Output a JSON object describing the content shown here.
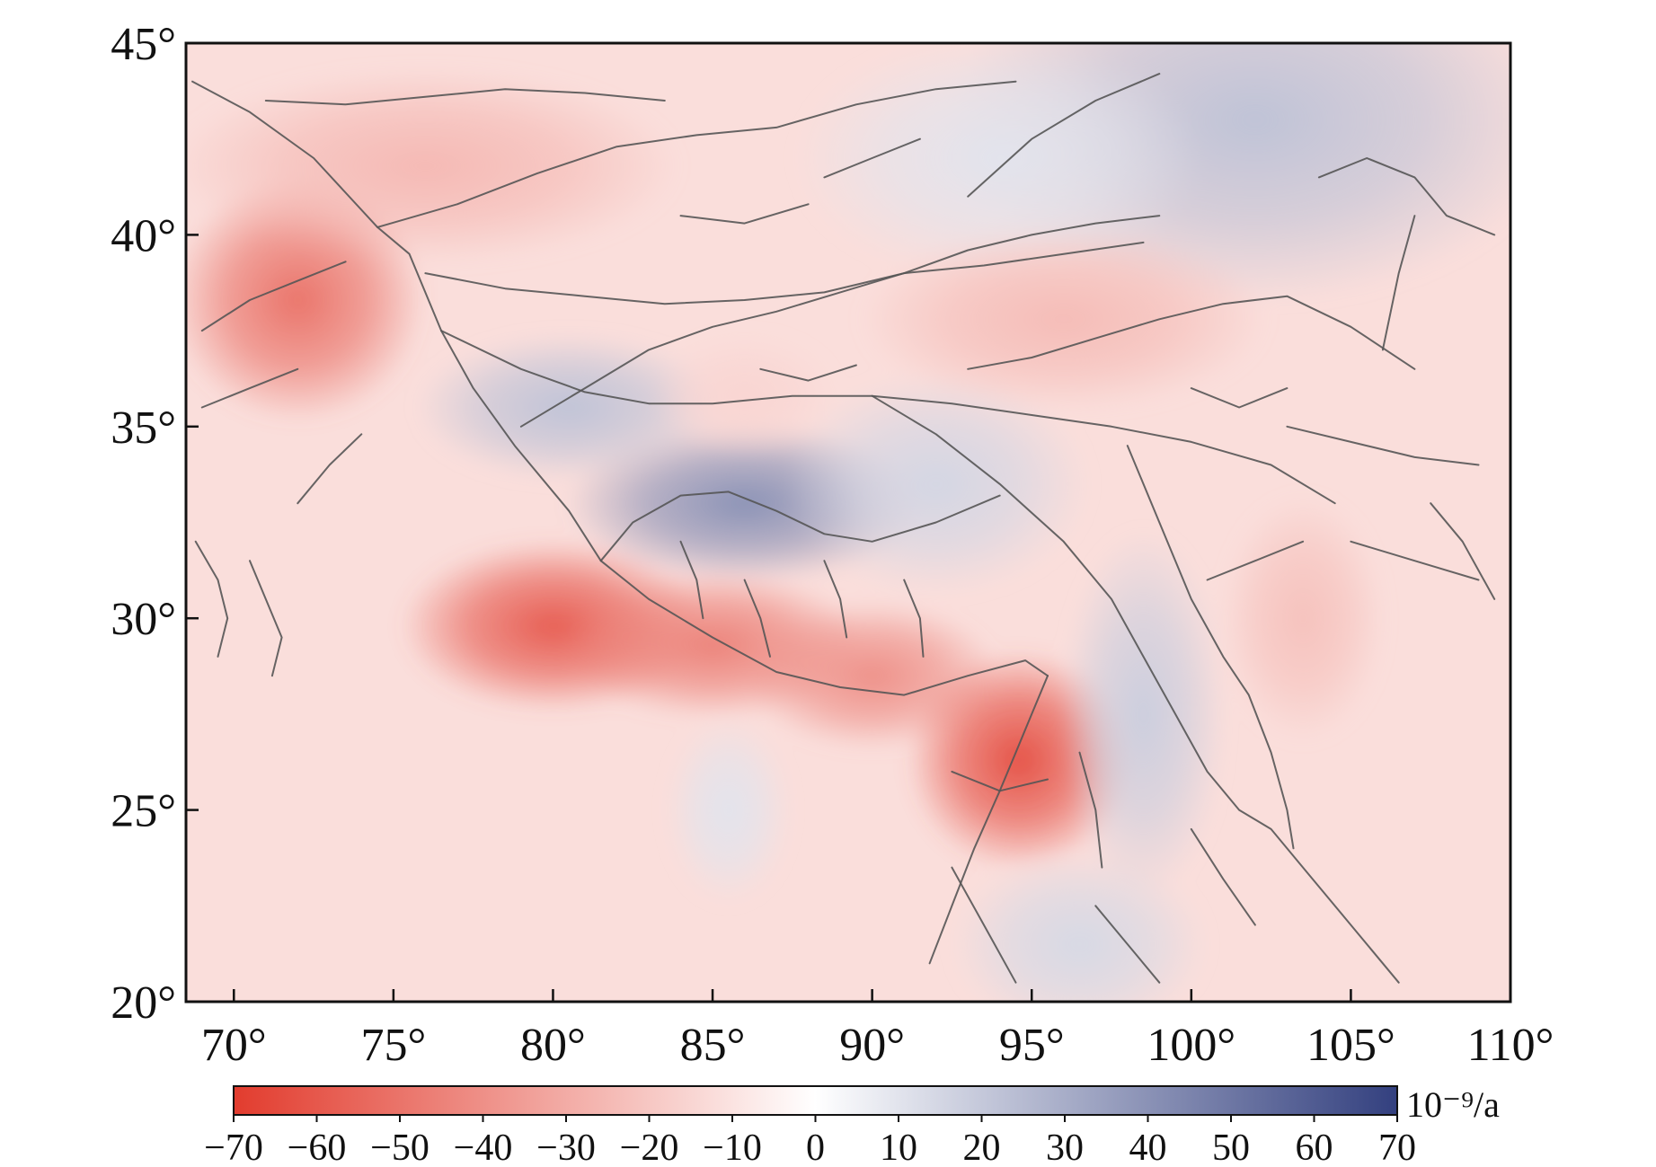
{
  "map": {
    "lon_range": [
      68.5,
      110
    ],
    "lat_range": [
      20,
      45
    ],
    "x_ticks": [
      {
        "value": 70,
        "label": "70°"
      },
      {
        "value": 75,
        "label": "75°"
      },
      {
        "value": 80,
        "label": "80°"
      },
      {
        "value": 85,
        "label": "85°"
      },
      {
        "value": 90,
        "label": "90°"
      },
      {
        "value": 95,
        "label": "95°"
      },
      {
        "value": 100,
        "label": "100°"
      },
      {
        "value": 105,
        "label": "105°"
      },
      {
        "value": 110,
        "label": "110°"
      }
    ],
    "y_ticks": [
      {
        "value": 45,
        "label": "45°"
      },
      {
        "value": 40,
        "label": "40°"
      },
      {
        "value": 35,
        "label": "35°"
      },
      {
        "value": 30,
        "label": "30°"
      },
      {
        "value": 25,
        "label": "25°"
      },
      {
        "value": 20,
        "label": "20°"
      }
    ],
    "strain_field": {
      "background_value": -12,
      "anomalies": [
        {
          "lon": 72.0,
          "lat": 38.3,
          "value": -50,
          "spread_lon": 2.5,
          "spread_lat": 2.0
        },
        {
          "lon": 76.0,
          "lat": 41.8,
          "value": -25,
          "spread_lon": 5.0,
          "spread_lat": 1.6
        },
        {
          "lon": 80.0,
          "lat": 29.8,
          "value": -58,
          "spread_lon": 3.0,
          "spread_lat": 1.4
        },
        {
          "lon": 85.0,
          "lat": 29.3,
          "value": -45,
          "spread_lon": 3.0,
          "spread_lat": 1.2
        },
        {
          "lon": 90.0,
          "lat": 28.5,
          "value": -40,
          "spread_lon": 2.5,
          "spread_lat": 1.2
        },
        {
          "lon": 94.6,
          "lat": 26.3,
          "value": -62,
          "spread_lon": 2.2,
          "spread_lat": 1.8
        },
        {
          "lon": 86.0,
          "lat": 33.0,
          "value": 40,
          "spread_lon": 3.5,
          "spread_lat": 1.3
        },
        {
          "lon": 80.5,
          "lat": 35.5,
          "value": 22,
          "spread_lon": 3.0,
          "spread_lat": 1.2
        },
        {
          "lon": 92.0,
          "lat": 33.5,
          "value": 15,
          "spread_lon": 3.0,
          "spread_lat": 1.8
        },
        {
          "lon": 98.5,
          "lat": 27.5,
          "value": 18,
          "spread_lon": 1.6,
          "spread_lat": 3.0
        },
        {
          "lon": 96.5,
          "lat": 21.5,
          "value": 14,
          "spread_lon": 2.5,
          "spread_lat": 1.5
        },
        {
          "lon": 102.0,
          "lat": 43.0,
          "value": 22,
          "spread_lon": 6.0,
          "spread_lat": 3.0
        },
        {
          "lon": 94.0,
          "lat": 42.0,
          "value": 10,
          "spread_lon": 4.0,
          "spread_lat": 2.0
        },
        {
          "lon": 96.0,
          "lat": 37.8,
          "value": -24,
          "spread_lon": 4.0,
          "spread_lat": 1.5
        },
        {
          "lon": 103.5,
          "lat": 30.0,
          "value": -22,
          "spread_lon": 1.6,
          "spread_lat": 2.0
        },
        {
          "lon": 86.0,
          "lat": 35.8,
          "value": -15,
          "spread_lon": 1.8,
          "spread_lat": 1.0
        },
        {
          "lon": 85.5,
          "lat": 25.0,
          "value": 10,
          "spread_lon": 1.2,
          "spread_lat": 1.5
        }
      ]
    }
  },
  "colorbar": {
    "min": -70,
    "max": 70,
    "negative_color": "#e23c2e",
    "zero_color": "#ffffff",
    "positive_color": "#33407f",
    "unit_label": "10⁻⁹/a",
    "ticks": [
      {
        "value": -70,
        "label": "−70"
      },
      {
        "value": -60,
        "label": "−60"
      },
      {
        "value": -50,
        "label": "−50"
      },
      {
        "value": -40,
        "label": "−40"
      },
      {
        "value": -30,
        "label": "−30"
      },
      {
        "value": -20,
        "label": "−20"
      },
      {
        "value": -10,
        "label": "−10"
      },
      {
        "value": 0,
        "label": "0"
      },
      {
        "value": 10,
        "label": "10"
      },
      {
        "value": 20,
        "label": "20"
      },
      {
        "value": 30,
        "label": "30"
      },
      {
        "value": 40,
        "label": "40"
      },
      {
        "value": 50,
        "label": "50"
      },
      {
        "value": 60,
        "label": "60"
      },
      {
        "value": 70,
        "label": "70"
      }
    ]
  },
  "faults": {
    "color": "#555555",
    "lines": [
      [
        [
          68.7,
          44.0
        ],
        [
          70.5,
          43.2
        ],
        [
          72.5,
          42.0
        ],
        [
          74.5,
          40.2
        ],
        [
          75.5,
          39.5
        ],
        [
          76.5,
          37.5
        ],
        [
          77.5,
          36.0
        ],
        [
          78.8,
          34.5
        ],
        [
          80.5,
          32.8
        ],
        [
          81.5,
          31.5
        ],
        [
          83.0,
          30.5
        ],
        [
          85.0,
          29.5
        ],
        [
          87.0,
          28.6
        ],
        [
          89.0,
          28.2
        ],
        [
          91.0,
          28.0
        ],
        [
          93.0,
          28.5
        ],
        [
          94.8,
          28.9
        ],
        [
          95.5,
          28.5
        ]
      ],
      [
        [
          95.5,
          28.5
        ],
        [
          95.0,
          27.5
        ],
        [
          94.5,
          26.5
        ],
        [
          94.0,
          25.5
        ],
        [
          93.2,
          24.0
        ],
        [
          92.5,
          22.5
        ],
        [
          91.8,
          21.0
        ]
      ],
      [
        [
          76.5,
          37.5
        ],
        [
          79.0,
          36.5
        ],
        [
          81.0,
          35.9
        ],
        [
          83.0,
          35.6
        ],
        [
          85.0,
          35.6
        ],
        [
          87.5,
          35.8
        ],
        [
          90.0,
          35.8
        ],
        [
          92.5,
          35.6
        ],
        [
          95.0,
          35.3
        ],
        [
          97.5,
          35.0
        ],
        [
          100.0,
          34.6
        ],
        [
          102.5,
          34.0
        ],
        [
          104.5,
          33.0
        ]
      ],
      [
        [
          74.5,
          40.2
        ],
        [
          77.0,
          40.8
        ],
        [
          79.5,
          41.6
        ],
        [
          82.0,
          42.3
        ],
        [
          84.5,
          42.6
        ],
        [
          87.0,
          42.8
        ],
        [
          89.5,
          43.4
        ],
        [
          92.0,
          43.8
        ],
        [
          94.5,
          44.0
        ]
      ],
      [
        [
          71.0,
          43.5
        ],
        [
          73.5,
          43.4
        ],
        [
          76.0,
          43.6
        ],
        [
          78.5,
          43.8
        ],
        [
          81.0,
          43.7
        ],
        [
          83.5,
          43.5
        ]
      ],
      [
        [
          76.0,
          39.0
        ],
        [
          78.5,
          38.6
        ],
        [
          81.0,
          38.4
        ],
        [
          83.5,
          38.2
        ],
        [
          86.0,
          38.3
        ],
        [
          88.5,
          38.5
        ],
        [
          91.0,
          39.0
        ],
        [
          93.5,
          39.2
        ],
        [
          96.0,
          39.5
        ],
        [
          98.5,
          39.8
        ]
      ],
      [
        [
          79.0,
          35.0
        ],
        [
          81.0,
          36.0
        ],
        [
          83.0,
          37.0
        ],
        [
          85.0,
          37.6
        ],
        [
          87.0,
          38.0
        ],
        [
          89.0,
          38.5
        ],
        [
          91.0,
          39.0
        ],
        [
          93.0,
          39.6
        ],
        [
          95.0,
          40.0
        ],
        [
          97.0,
          40.3
        ],
        [
          99.0,
          40.5
        ]
      ],
      [
        [
          93.0,
          36.5
        ],
        [
          95.0,
          36.8
        ],
        [
          97.0,
          37.3
        ],
        [
          99.0,
          37.8
        ],
        [
          101.0,
          38.2
        ],
        [
          103.0,
          38.4
        ],
        [
          105.0,
          37.6
        ],
        [
          107.0,
          36.5
        ]
      ],
      [
        [
          90.0,
          35.8
        ],
        [
          92.0,
          34.8
        ],
        [
          94.0,
          33.5
        ],
        [
          96.0,
          32.0
        ],
        [
          97.5,
          30.5
        ],
        [
          98.5,
          29.0
        ],
        [
          99.5,
          27.5
        ],
        [
          100.5,
          26.0
        ],
        [
          101.5,
          25.0
        ],
        [
          102.5,
          24.5
        ],
        [
          103.5,
          23.5
        ],
        [
          105.0,
          22.0
        ],
        [
          106.5,
          20.5
        ]
      ],
      [
        [
          98.0,
          34.5
        ],
        [
          99.0,
          32.5
        ],
        [
          100.0,
          30.5
        ],
        [
          101.0,
          29.0
        ],
        [
          101.8,
          28.0
        ],
        [
          102.5,
          26.5
        ],
        [
          103.0,
          25.0
        ],
        [
          103.2,
          24.0
        ]
      ],
      [
        [
          81.5,
          31.5
        ],
        [
          82.5,
          32.5
        ],
        [
          84.0,
          33.2
        ],
        [
          85.5,
          33.3
        ],
        [
          87.0,
          32.8
        ],
        [
          88.5,
          32.2
        ],
        [
          90.0,
          32.0
        ],
        [
          92.0,
          32.5
        ],
        [
          94.0,
          33.2
        ]
      ],
      [
        [
          93.0,
          41.0
        ],
        [
          95.0,
          42.5
        ],
        [
          97.0,
          43.5
        ],
        [
          99.0,
          44.2
        ]
      ],
      [
        [
          104.0,
          41.5
        ],
        [
          105.5,
          42.0
        ],
        [
          107.0,
          41.5
        ],
        [
          108.0,
          40.5
        ],
        [
          109.5,
          40.0
        ]
      ],
      [
        [
          106.0,
          37.0
        ],
        [
          106.5,
          39.0
        ],
        [
          107.0,
          40.5
        ]
      ],
      [
        [
          103.0,
          35.0
        ],
        [
          105.0,
          34.6
        ],
        [
          107.0,
          34.2
        ],
        [
          109.0,
          34.0
        ]
      ],
      [
        [
          105.0,
          32.0
        ],
        [
          107.0,
          31.5
        ],
        [
          109.0,
          31.0
        ]
      ],
      [
        [
          107.5,
          33.0
        ],
        [
          108.5,
          32.0
        ],
        [
          109.5,
          30.5
        ]
      ],
      [
        [
          92.5,
          23.5
        ],
        [
          93.5,
          22.0
        ],
        [
          94.5,
          20.5
        ]
      ],
      [
        [
          97.0,
          22.5
        ],
        [
          98.0,
          21.5
        ],
        [
          99.0,
          20.5
        ]
      ],
      [
        [
          100.0,
          24.5
        ],
        [
          101.0,
          23.2
        ],
        [
          102.0,
          22.0
        ]
      ],
      [
        [
          69.0,
          37.5
        ],
        [
          70.5,
          38.3
        ],
        [
          72.0,
          38.8
        ],
        [
          73.5,
          39.3
        ]
      ],
      [
        [
          69.0,
          35.5
        ],
        [
          70.5,
          36.0
        ],
        [
          72.0,
          36.5
        ]
      ],
      [
        [
          72.0,
          33.0
        ],
        [
          73.0,
          34.0
        ],
        [
          74.0,
          34.8
        ]
      ],
      [
        [
          68.8,
          32.0
        ],
        [
          69.5,
          31.0
        ],
        [
          69.8,
          30.0
        ],
        [
          69.5,
          29.0
        ]
      ],
      [
        [
          70.5,
          31.5
        ],
        [
          71.0,
          30.5
        ],
        [
          71.5,
          29.5
        ],
        [
          71.2,
          28.5
        ]
      ],
      [
        [
          86.5,
          36.5
        ],
        [
          88.0,
          36.2
        ],
        [
          89.5,
          36.6
        ]
      ],
      [
        [
          96.5,
          26.5
        ],
        [
          97.0,
          25.0
        ],
        [
          97.2,
          23.5
        ]
      ],
      [
        [
          92.5,
          26.0
        ],
        [
          94.0,
          25.5
        ],
        [
          95.5,
          25.8
        ]
      ],
      [
        [
          84.0,
          40.5
        ],
        [
          86.0,
          40.3
        ],
        [
          88.0,
          40.8
        ]
      ],
      [
        [
          88.5,
          41.5
        ],
        [
          90.0,
          42.0
        ],
        [
          91.5,
          42.5
        ]
      ],
      [
        [
          100.0,
          36.0
        ],
        [
          101.5,
          35.5
        ],
        [
          103.0,
          36.0
        ]
      ],
      [
        [
          100.5,
          31.0
        ],
        [
          102.0,
          31.5
        ],
        [
          103.5,
          32.0
        ]
      ],
      [
        [
          86.0,
          31.0
        ],
        [
          86.5,
          30.0
        ],
        [
          86.8,
          29.0
        ]
      ],
      [
        [
          88.5,
          31.5
        ],
        [
          89.0,
          30.5
        ],
        [
          89.2,
          29.5
        ]
      ],
      [
        [
          84.0,
          32.0
        ],
        [
          84.5,
          31.0
        ],
        [
          84.7,
          30.0
        ]
      ],
      [
        [
          91.0,
          31.0
        ],
        [
          91.5,
          30.0
        ],
        [
          91.6,
          29.0
        ]
      ]
    ]
  }
}
